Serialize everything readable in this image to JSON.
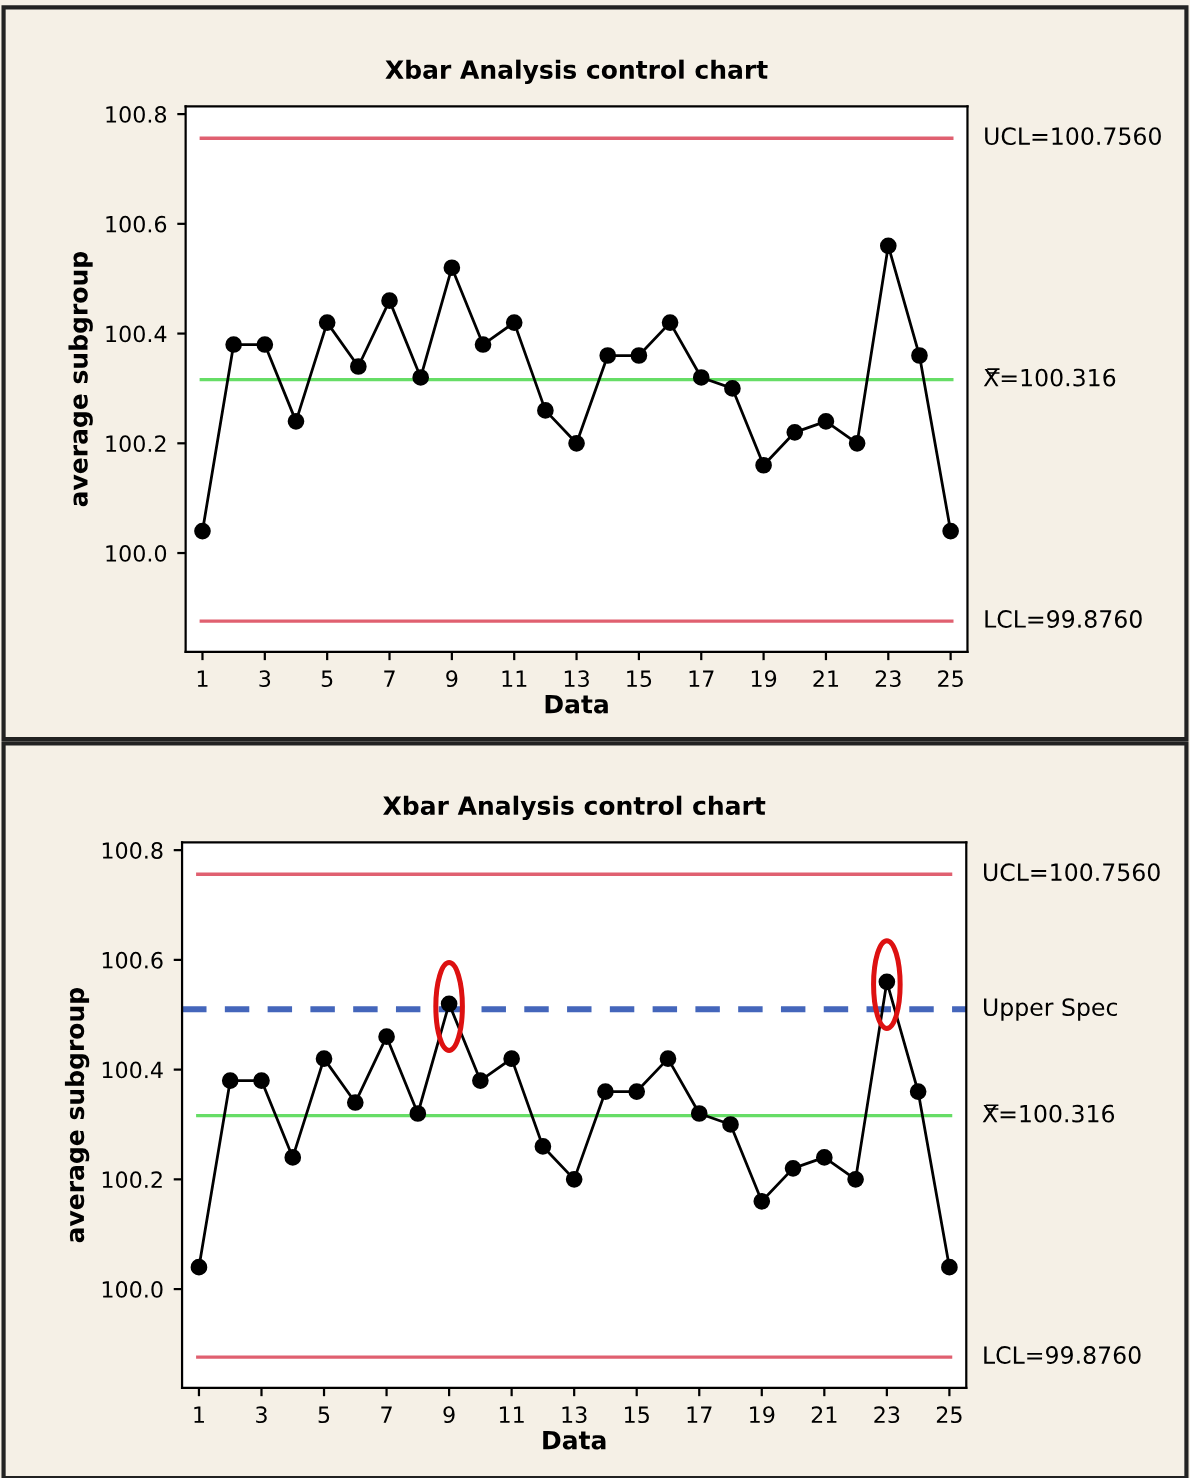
{
  "chart_data": [
    {
      "type": "line",
      "title": "Xbar Analysis control chart",
      "xlabel": "Data",
      "ylabel": "average subgroup",
      "x": [
        1,
        2,
        3,
        4,
        5,
        6,
        7,
        8,
        9,
        10,
        11,
        12,
        13,
        14,
        15,
        16,
        17,
        18,
        19,
        20,
        21,
        22,
        23,
        24,
        25
      ],
      "series": [
        {
          "color": "#000000",
          "values": [
            100.04,
            100.38,
            100.38,
            100.24,
            100.42,
            100.34,
            100.46,
            100.32,
            100.52,
            100.38,
            100.42,
            100.26,
            100.2,
            100.36,
            100.36,
            100.42,
            100.32,
            100.3,
            100.16,
            100.22,
            100.24,
            100.2,
            100.56,
            100.36,
            100.04
          ]
        }
      ],
      "xlim": [
        0.46,
        25.54
      ],
      "xticks": [
        1,
        3,
        5,
        7,
        9,
        11,
        13,
        15,
        17,
        19,
        21,
        23,
        25
      ],
      "ylim": [
        99.82,
        100.814
      ],
      "yticks": [
        {
          "value": 100,
          "label": "100.0"
        },
        100.2,
        100.4,
        100.6,
        100.8
      ],
      "ref_lines": [
        {
          "axis": "y",
          "value": 100.756,
          "label": "UCL=100.7560",
          "color": "#e06070",
          "line_style": "solid"
        },
        {
          "axis": "y",
          "value": 100.316,
          "label": "X̿=100.316",
          "color": "#66dd66",
          "line_style": "solid"
        },
        {
          "axis": "y",
          "value": 99.876,
          "label": "LCL=99.8760",
          "color": "#e06070",
          "line_style": "solid"
        }
      ],
      "marker": "circle",
      "line_style": "solid",
      "grid": false,
      "legend": false
    },
    {
      "type": "line",
      "title": "Xbar Analysis control chart",
      "xlabel": "Data",
      "ylabel": "average subgroup",
      "x": [
        1,
        2,
        3,
        4,
        5,
        6,
        7,
        8,
        9,
        10,
        11,
        12,
        13,
        14,
        15,
        16,
        17,
        18,
        19,
        20,
        21,
        22,
        23,
        24,
        25
      ],
      "series": [
        {
          "color": "#000000",
          "values": [
            100.04,
            100.38,
            100.38,
            100.24,
            100.42,
            100.34,
            100.46,
            100.32,
            100.52,
            100.38,
            100.42,
            100.26,
            100.2,
            100.36,
            100.36,
            100.42,
            100.32,
            100.3,
            100.16,
            100.22,
            100.24,
            100.2,
            100.56,
            100.36,
            100.04
          ]
        }
      ],
      "xlim": [
        0.46,
        25.54
      ],
      "xticks": [
        1,
        3,
        5,
        7,
        9,
        11,
        13,
        15,
        17,
        19,
        21,
        23,
        25
      ],
      "ylim": [
        99.82,
        100.814
      ],
      "yticks": [
        {
          "value": 100,
          "label": "100.0"
        },
        100.2,
        100.4,
        100.6,
        100.8
      ],
      "ref_lines": [
        {
          "axis": "y",
          "value": 100.756,
          "label": "UCL=100.7560",
          "color": "#e06070",
          "line_style": "solid"
        },
        {
          "axis": "y",
          "value": 100.51,
          "label": "Upper Spec",
          "color": "#4466bb",
          "line_style": "dashed"
        },
        {
          "axis": "y",
          "value": 100.316,
          "label": "X̿=100.316",
          "color": "#66dd66",
          "line_style": "solid"
        },
        {
          "axis": "y",
          "value": 99.876,
          "label": "LCL=99.8760",
          "color": "#e06070",
          "line_style": "solid"
        }
      ],
      "marker": "circle",
      "line_style": "solid",
      "grid": false,
      "legend": false
    }
  ]
}
